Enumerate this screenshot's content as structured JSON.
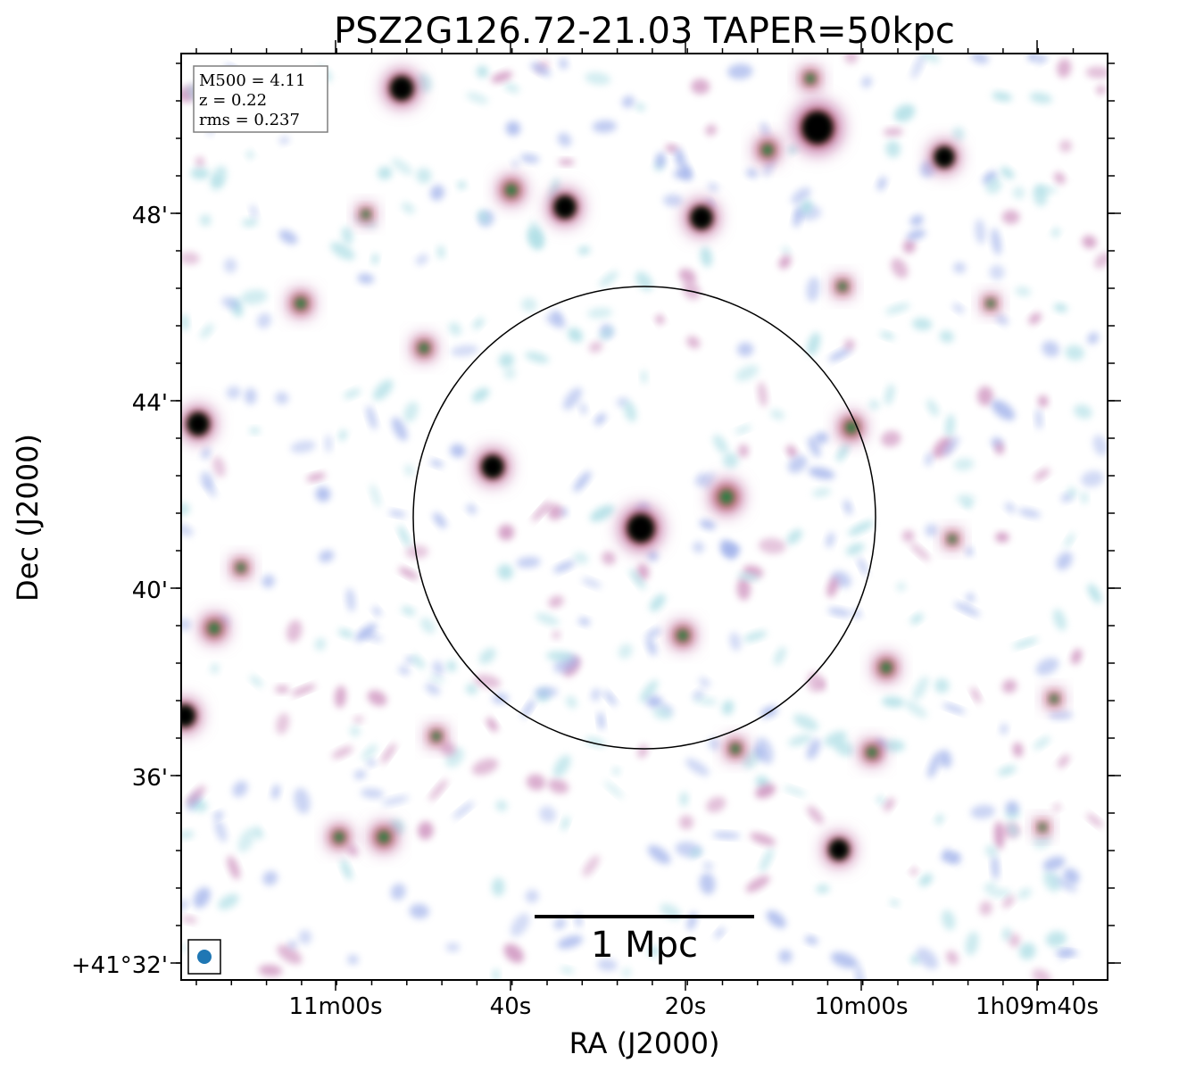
{
  "title": "PSZ2G126.72-21.03 TAPER=50kpc",
  "xlabel": "RA (J2000)",
  "ylabel": "Dec (J2000)",
  "ra_ticks": [
    "11m00s",
    "40s",
    "20s",
    "10m00s",
    "1h09m40s"
  ],
  "dec_ticks": [
    "48'",
    "44'",
    "40'",
    "36'",
    "+41°32'"
  ],
  "info_box": {
    "m500": "M500 = 4.11",
    "z": "z = 0.22",
    "rms": "rms = 0.237"
  },
  "scale_bar_label": "1 Mpc",
  "colors": {
    "circle": "#000000",
    "beam": "#1f77b4",
    "noise_cyan": "#a7dbe3",
    "noise_blue": "#9fb0ea",
    "source_pink": "#c987b8",
    "source_red": "#c0605c",
    "source_green": "#2e7d45",
    "source_core": "#000000"
  },
  "sources": [
    {
      "name": "source-central",
      "size": "large"
    },
    {
      "name": "source-bright-top-right",
      "size": "large"
    },
    {
      "name": "source-left-edge",
      "size": "medium"
    },
    {
      "name": "source-west-of-centre",
      "size": "medium"
    }
  ]
}
